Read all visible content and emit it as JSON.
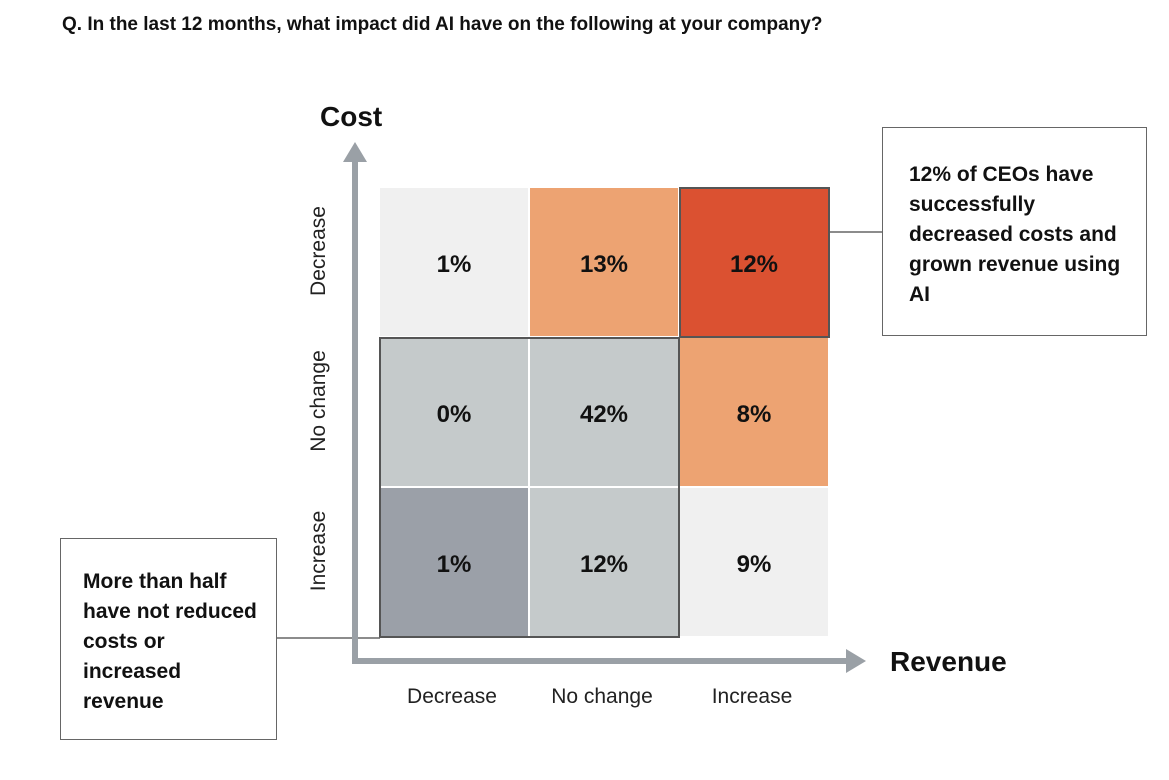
{
  "question": "Q. In the last 12 months, what impact did AI have on the following at your company?",
  "chart_data": {
    "type": "heatmap",
    "ylabel": "Cost",
    "xlabel": "Revenue",
    "x_categories": [
      "Decrease",
      "No change",
      "Increase"
    ],
    "y_categories": [
      "Decrease",
      "No change",
      "Increase"
    ],
    "cells": [
      {
        "cost": "Decrease",
        "revenue": "Decrease",
        "value": 1,
        "label": "1%",
        "color": "#f0f0f0"
      },
      {
        "cost": "Decrease",
        "revenue": "No change",
        "value": 13,
        "label": "13%",
        "color": "#eda372"
      },
      {
        "cost": "Decrease",
        "revenue": "Increase",
        "value": 12,
        "label": "12%",
        "color": "#db5131"
      },
      {
        "cost": "No change",
        "revenue": "Decrease",
        "value": 0,
        "label": "0%",
        "color": "#c5cacb"
      },
      {
        "cost": "No change",
        "revenue": "No change",
        "value": 42,
        "label": "42%",
        "color": "#c5cacb"
      },
      {
        "cost": "No change",
        "revenue": "Increase",
        "value": 8,
        "label": "8%",
        "color": "#eda372"
      },
      {
        "cost": "Increase",
        "revenue": "Decrease",
        "value": 1,
        "label": "1%",
        "color": "#9ba0a8"
      },
      {
        "cost": "Increase",
        "revenue": "No change",
        "value": 12,
        "label": "12%",
        "color": "#c5cacb"
      },
      {
        "cost": "Increase",
        "revenue": "Increase",
        "value": 9,
        "label": "9%",
        "color": "#f0f0f0"
      }
    ],
    "annotations": [
      "12% of CEOs have successfully decreased costs and grown revenue using AI",
      "More than half have not reduced costs or increased revenue"
    ],
    "axis_color": "#9aa0a6"
  }
}
